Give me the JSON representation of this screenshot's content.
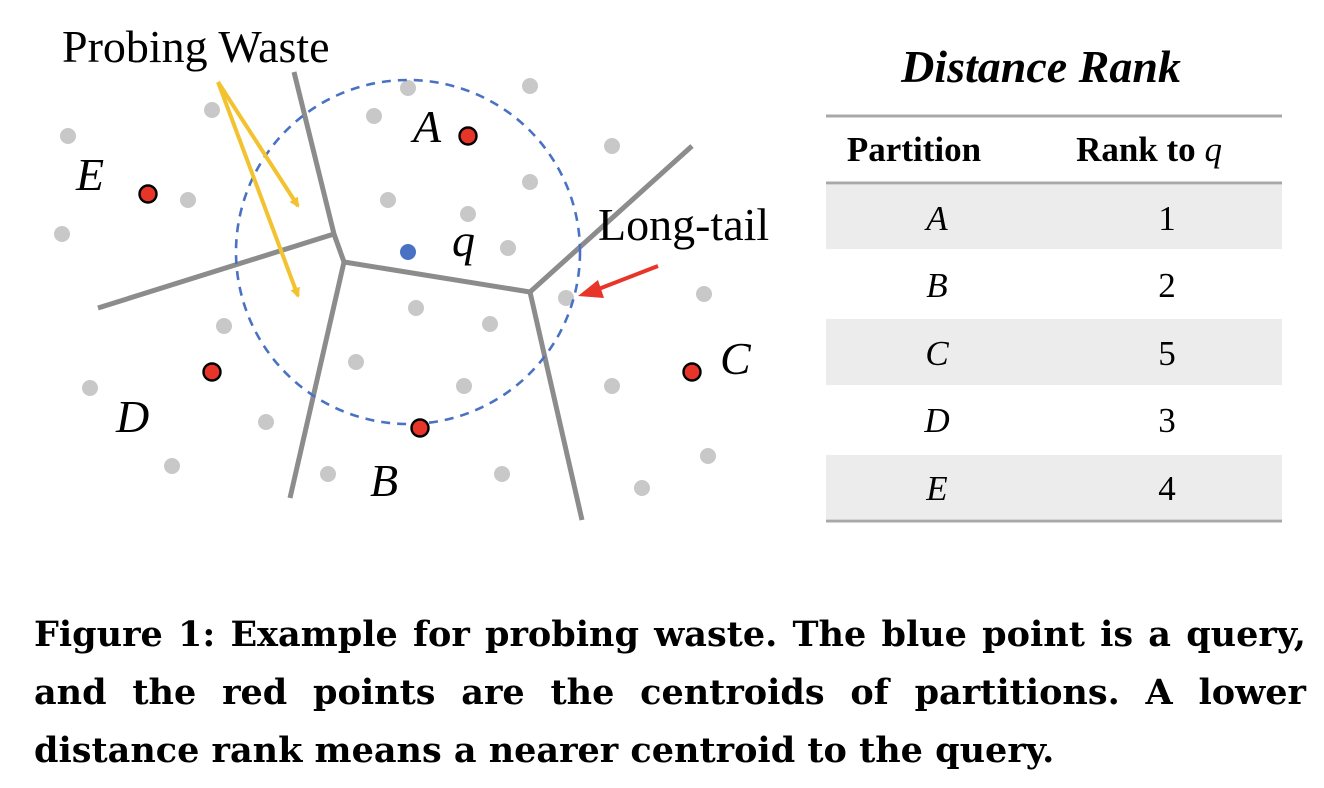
{
  "figure": {
    "annotations": {
      "probing_waste": "Probing Waste",
      "long_tail": "Long-tail",
      "query": "q"
    },
    "partition_labels": [
      "A",
      "B",
      "C",
      "D",
      "E"
    ],
    "table": {
      "title": "Distance Rank",
      "headers": [
        "Partition",
        "Rank to q"
      ],
      "rows": [
        {
          "partition": "A",
          "rank": "1"
        },
        {
          "partition": "B",
          "rank": "2"
        },
        {
          "partition": "C",
          "rank": "5"
        },
        {
          "partition": "D",
          "rank": "3"
        },
        {
          "partition": "E",
          "rank": "4"
        }
      ]
    },
    "colors": {
      "centroid": "#e8352a",
      "query": "#4a72c4",
      "data_point": "#c8c8c8",
      "boundary": "#8c8c8c",
      "search_radius": "#4a72c4",
      "probing_arrow": "#f2c230",
      "longtail_arrow": "#e8352a",
      "row_shade": "#ececec"
    }
  },
  "caption": "Figure 1: Example for probing waste. The blue point is a query, and the red points are the centroids of partitions. A lower distance rank means a nearer centroid to the query."
}
